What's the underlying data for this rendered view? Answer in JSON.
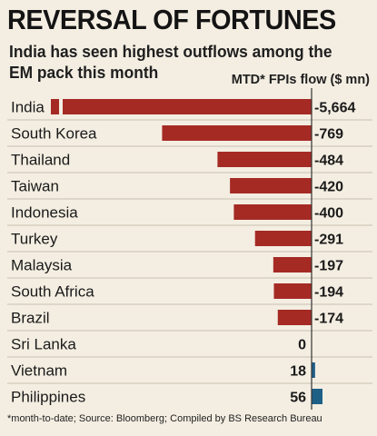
{
  "header": {
    "title": "REVERSAL OF FORTUNES",
    "subtitle": "India has seen highest outflows among the EM pack this month",
    "column_label": "MTD* FPIs flow ($ mn)"
  },
  "footnote": "*month-to-date; Source: Bloomberg; Compiled by BS Research Bureau",
  "colors": {
    "negative": "#a52a24",
    "positive": "#1e5f86",
    "axis": "#333333",
    "separator": "#c9c0b0"
  },
  "chart_data": {
    "type": "bar",
    "orientation": "horizontal",
    "categories": [
      "India",
      "South Korea",
      "Thailand",
      "Taiwan",
      "Indonesia",
      "Turkey",
      "Malaysia",
      "South Africa",
      "Brazil",
      "Sri Lanka",
      "Vietnam",
      "Philippines"
    ],
    "values": [
      -5664,
      -769,
      -484,
      -420,
      -400,
      -291,
      -197,
      -194,
      -174,
      0,
      18,
      56
    ],
    "value_labels": [
      "-5,664",
      "-769",
      "-484",
      "-420",
      "-400",
      "-291",
      "-197",
      "-194",
      "-174",
      "0",
      "18",
      "56"
    ],
    "axis_break": true
  }
}
